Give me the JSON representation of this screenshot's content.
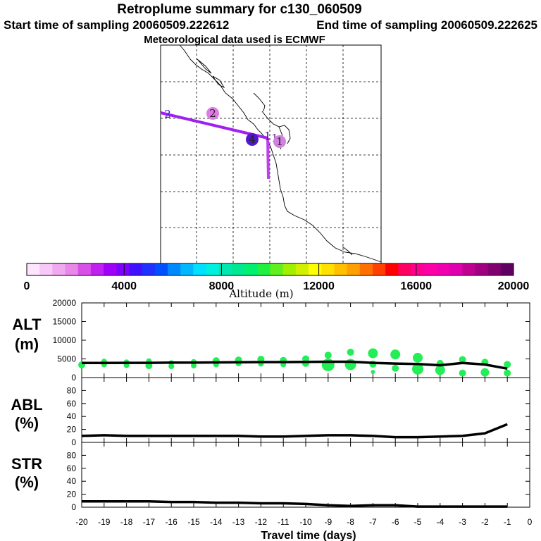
{
  "header": {
    "title": "Retroplume summary for c130_060509",
    "start_label": "Start time of sampling 20060509.222612",
    "end_label": "End time of sampling 20060509.222625",
    "met_label": "Meteorological data used is ECMWF"
  },
  "map": {
    "markers": [
      {
        "label": "2",
        "color": "#3010d8",
        "style": "text"
      },
      {
        "label": "2",
        "color": "#e07ae8",
        "style": "circle"
      },
      {
        "label": "4",
        "color": "#5018c8",
        "style": "circle"
      },
      {
        "label": "1",
        "color": "#2a1060",
        "style": "text"
      },
      {
        "label": "1",
        "color": "#6a1a8a",
        "style": "text"
      },
      {
        "label": "1",
        "color": "#d080e0",
        "style": "circle"
      }
    ],
    "track_color": "#a020f0"
  },
  "colorbar": {
    "label": "Altitude (m)",
    "ticks": [
      "0",
      "4000",
      "8000",
      "12000",
      "16000",
      "20000"
    ],
    "colors": [
      "#fde6fd",
      "#f8c8f8",
      "#f0a8f0",
      "#e888e8",
      "#d850e8",
      "#c020f0",
      "#a000f8",
      "#8000ff",
      "#4010ff",
      "#2030ff",
      "#0050ff",
      "#0088ff",
      "#00b8ff",
      "#00e0ff",
      "#00f0e0",
      "#00e8b0",
      "#00e890",
      "#00f070",
      "#20f040",
      "#60f020",
      "#a0f000",
      "#d0f000",
      "#ffff00",
      "#ffe000",
      "#ffc000",
      "#ffa000",
      "#ff7000",
      "#ff4000",
      "#ff0000",
      "#ff0060",
      "#ff0090",
      "#ff00a8",
      "#f000b0",
      "#e000b0",
      "#c00090",
      "#a00080",
      "#800070",
      "#600060"
    ]
  },
  "chart_data": [
    {
      "type": "line",
      "name": "ALT",
      "title": "ALT",
      "ylabel": "(m)",
      "ylim": [
        0,
        20000
      ],
      "yticks": [
        "0",
        "5000",
        "10000",
        "15000",
        "20000"
      ],
      "x": [
        -20,
        -19,
        -18,
        -17,
        -16,
        -15,
        -14,
        -13,
        -12,
        -11,
        -10,
        -9,
        -8,
        -7,
        -6,
        -5,
        -4,
        -3,
        -2,
        -1
      ],
      "values": [
        3900,
        3900,
        3950,
        3950,
        4000,
        4000,
        4050,
        4100,
        4150,
        4150,
        4200,
        4250,
        4250,
        3950,
        3750,
        3650,
        3300,
        3900,
        3500,
        2400
      ],
      "scatter": [
        {
          "x": -20,
          "y": 3400,
          "r": 5
        },
        {
          "x": -19,
          "y": 4300,
          "r": 4
        },
        {
          "x": -19,
          "y": 3500,
          "r": 4
        },
        {
          "x": -18,
          "y": 4100,
          "r": 4
        },
        {
          "x": -18,
          "y": 3300,
          "r": 4
        },
        {
          "x": -17,
          "y": 4400,
          "r": 4
        },
        {
          "x": -17,
          "y": 3200,
          "r": 5
        },
        {
          "x": -16,
          "y": 3900,
          "r": 4
        },
        {
          "x": -16,
          "y": 3000,
          "r": 4
        },
        {
          "x": -15,
          "y": 4200,
          "r": 4
        },
        {
          "x": -15,
          "y": 3200,
          "r": 4
        },
        {
          "x": -14,
          "y": 4500,
          "r": 5
        },
        {
          "x": -14,
          "y": 3500,
          "r": 4
        },
        {
          "x": -13,
          "y": 4700,
          "r": 5
        },
        {
          "x": -13,
          "y": 3800,
          "r": 4
        },
        {
          "x": -12,
          "y": 4900,
          "r": 5
        },
        {
          "x": -12,
          "y": 3700,
          "r": 4
        },
        {
          "x": -11,
          "y": 4600,
          "r": 5
        },
        {
          "x": -11,
          "y": 3500,
          "r": 4
        },
        {
          "x": -10,
          "y": 5000,
          "r": 5
        },
        {
          "x": -10,
          "y": 3800,
          "r": 5
        },
        {
          "x": -9,
          "y": 6000,
          "r": 5
        },
        {
          "x": -9,
          "y": 3400,
          "r": 9
        },
        {
          "x": -8,
          "y": 6800,
          "r": 5
        },
        {
          "x": -8,
          "y": 3500,
          "r": 8
        },
        {
          "x": -7,
          "y": 6500,
          "r": 7
        },
        {
          "x": -7,
          "y": 3600,
          "r": 5
        },
        {
          "x": -7,
          "y": 1500,
          "r": 3
        },
        {
          "x": -6,
          "y": 6200,
          "r": 7
        },
        {
          "x": -6,
          "y": 2500,
          "r": 5
        },
        {
          "x": -5,
          "y": 5300,
          "r": 7
        },
        {
          "x": -5,
          "y": 2300,
          "r": 8
        },
        {
          "x": -4,
          "y": 3800,
          "r": 5
        },
        {
          "x": -4,
          "y": 2000,
          "r": 7
        },
        {
          "x": -3,
          "y": 4800,
          "r": 5
        },
        {
          "x": -3,
          "y": 1200,
          "r": 5
        },
        {
          "x": -2,
          "y": 4100,
          "r": 5
        },
        {
          "x": -2,
          "y": 1400,
          "r": 6
        },
        {
          "x": -1,
          "y": 3500,
          "r": 5
        },
        {
          "x": -1,
          "y": 1200,
          "r": 5
        }
      ],
      "scatter_color": "#22ee55"
    },
    {
      "type": "line",
      "name": "ABL",
      "title": "ABL",
      "ylabel": "(%)",
      "ylim": [
        0,
        100
      ],
      "yticks": [
        "0",
        "20",
        "40",
        "60",
        "80"
      ],
      "x": [
        -20,
        -19,
        -18,
        -17,
        -16,
        -15,
        -14,
        -13,
        -12,
        -11,
        -10,
        -9,
        -8,
        -7,
        -6,
        -5,
        -4,
        -3,
        -2,
        -1
      ],
      "values": [
        10,
        11,
        10,
        10,
        10,
        10,
        10,
        10,
        9,
        9,
        10,
        11,
        11,
        10,
        8,
        8,
        9,
        10,
        14,
        28
      ]
    },
    {
      "type": "line",
      "name": "STR",
      "title": "STR",
      "ylabel": "(%)",
      "ylim": [
        0,
        100
      ],
      "yticks": [
        "0",
        "20",
        "40",
        "60",
        "80"
      ],
      "x": [
        -20,
        -19,
        -18,
        -17,
        -16,
        -15,
        -14,
        -13,
        -12,
        -11,
        -10,
        -9,
        -8,
        -7,
        -6,
        -5,
        -4,
        -3,
        -2,
        -1
      ],
      "values": [
        9,
        9,
        9,
        9,
        8,
        8,
        7,
        7,
        6,
        6,
        5,
        3,
        2,
        3,
        3,
        1,
        1,
        1,
        1,
        1
      ]
    }
  ],
  "xaxis": {
    "label": "Travel time (days)",
    "ticks": [
      "-20",
      "-19",
      "-18",
      "-17",
      "-16",
      "-15",
      "-14",
      "-13",
      "-12",
      "-11",
      "-10",
      "-9",
      "-8",
      "-7",
      "-6",
      "-5",
      "-4",
      "-3",
      "-2",
      "-1",
      "0"
    ]
  }
}
